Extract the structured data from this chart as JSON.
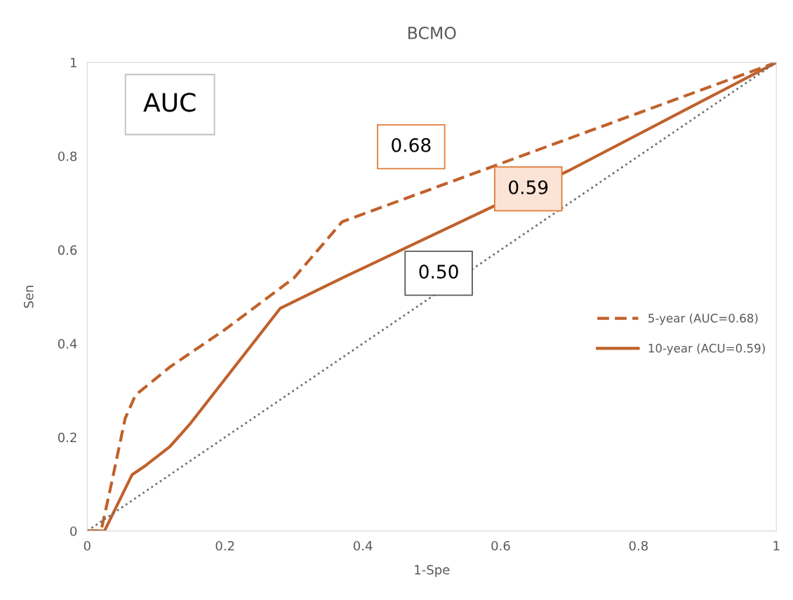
{
  "chart_data": {
    "type": "line",
    "title": "BCMO",
    "xlabel": "1-Spe",
    "ylabel": "Sen",
    "xlim": [
      0,
      1
    ],
    "ylim": [
      0,
      1
    ],
    "xticks": [
      0,
      0.2,
      0.4,
      0.6,
      0.8,
      1
    ],
    "yticks": [
      0,
      0.2,
      0.4,
      0.6,
      0.8,
      1
    ],
    "grid": false,
    "legend": "right",
    "marker": "none",
    "series": [
      {
        "name": "5-year (AUC=0.68)",
        "color": "#c0612b",
        "line_style": "dashed",
        "x": [
          0,
          0.02,
          0.035,
          0.055,
          0.07,
          0.12,
          0.2,
          0.3,
          0.37,
          1
        ],
        "values": [
          0,
          0,
          0.1,
          0.24,
          0.29,
          0.35,
          0.43,
          0.54,
          0.66,
          1
        ]
      },
      {
        "name": "10-year (ACU=0.59)",
        "color": "#c0612b",
        "line_style": "solid",
        "x": [
          0,
          0.025,
          0.045,
          0.065,
          0.085,
          0.12,
          0.15,
          0.28,
          0.37,
          0.7,
          1
        ],
        "values": [
          0,
          0,
          0.06,
          0.12,
          0.14,
          0.18,
          0.23,
          0.475,
          0.54,
          0.77,
          1
        ]
      },
      {
        "color": "#707070",
        "line_style": "dotted",
        "x": [
          0,
          1
        ],
        "values": [
          0,
          1
        ]
      }
    ],
    "annotations": [
      "AUC",
      "0.68",
      "0.59",
      "0.50"
    ]
  }
}
